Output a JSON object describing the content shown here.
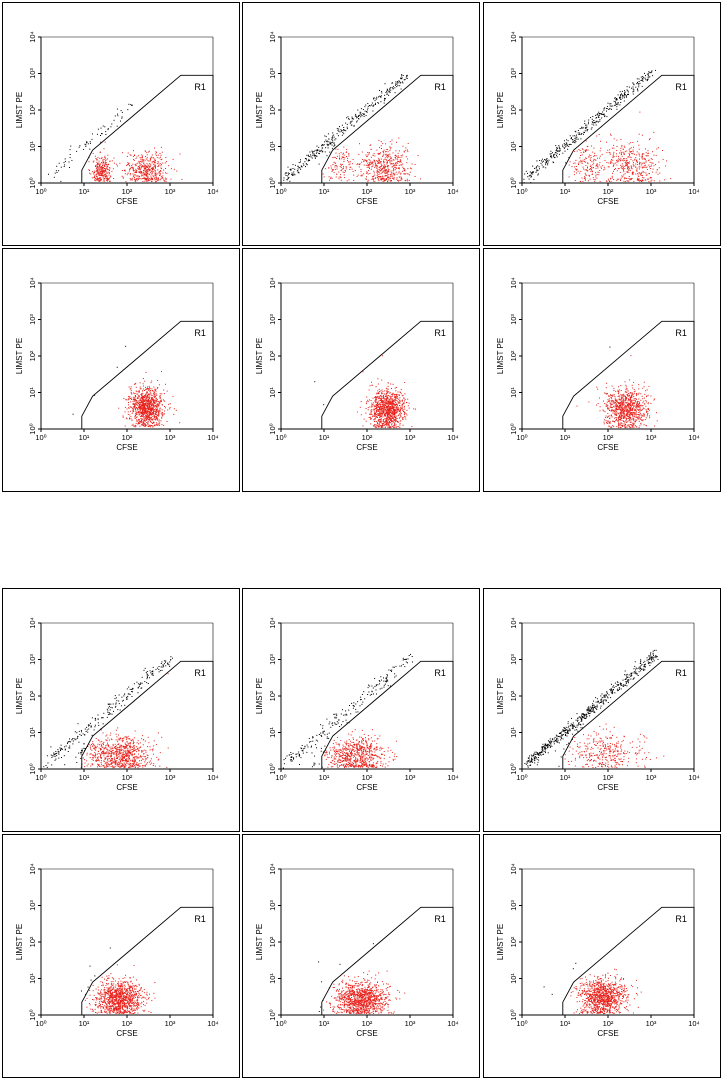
{
  "colors": {
    "gated_events": "#e8201a",
    "ungated_events": "#000000",
    "axes": "#000000"
  },
  "figures": [
    {
      "panels": [
        {
          "seed": 11,
          "chart_data": {
            "type": "scatter",
            "xlabel": "CFSE",
            "ylabel": "LIMST PE",
            "xscale": "log",
            "yscale": "log",
            "xlim": [
              1,
              10000
            ],
            "ylim": [
              1,
              10000
            ],
            "xticks": [
              "10⁰",
              "10¹",
              "10²",
              "10³",
              "10⁴"
            ],
            "yticks": [
              "10⁰",
              "10¹",
              "10²",
              "10³",
              "10⁴"
            ],
            "gate": "R1",
            "diagonal": {
              "n": 70,
              "spread": 0.12,
              "x_range": [
                0.1,
                2.1
              ]
            },
            "clusters": [
              {
                "n": 260,
                "cx": 1.4,
                "cy": 0.35,
                "sx": 0.13,
                "sy": 0.2
              },
              {
                "n": 420,
                "cx": 2.45,
                "cy": 0.35,
                "sx": 0.25,
                "sy": 0.25
              }
            ]
          }
        },
        {
          "seed": 22,
          "chart_data": {
            "type": "scatter",
            "xlabel": "CFSE",
            "ylabel": "LIMST PE",
            "xscale": "log",
            "yscale": "log",
            "xlim": [
              1,
              10000
            ],
            "ylim": [
              1,
              10000
            ],
            "xticks": [
              "10⁰",
              "10¹",
              "10²",
              "10³",
              "10⁴"
            ],
            "yticks": [
              "10⁰",
              "10¹",
              "10²",
              "10³",
              "10⁴"
            ],
            "gate": "R1",
            "diagonal": {
              "n": 320,
              "spread": 0.08,
              "x_range": [
                0.1,
                2.9
              ]
            },
            "clusters": [
              {
                "n": 120,
                "cx": 1.4,
                "cy": 0.5,
                "sx": 0.18,
                "sy": 0.25
              },
              {
                "n": 460,
                "cx": 2.4,
                "cy": 0.45,
                "sx": 0.3,
                "sy": 0.28
              }
            ]
          }
        },
        {
          "seed": 33,
          "chart_data": {
            "type": "scatter",
            "xlabel": "CFSE",
            "ylabel": "LIMST PE",
            "xscale": "log",
            "yscale": "log",
            "xlim": [
              1,
              10000
            ],
            "ylim": [
              1,
              10000
            ],
            "xticks": [
              "10⁰",
              "10¹",
              "10²",
              "10³",
              "10⁴"
            ],
            "yticks": [
              "10⁰",
              "10¹",
              "10²",
              "10³",
              "10⁴"
            ],
            "gate": "R1",
            "diagonal": {
              "n": 360,
              "spread": 0.08,
              "x_range": [
                0.1,
                3.0
              ]
            },
            "clusters": [
              {
                "n": 160,
                "cx": 1.5,
                "cy": 0.5,
                "sx": 0.22,
                "sy": 0.28
              },
              {
                "n": 380,
                "cx": 2.55,
                "cy": 0.5,
                "sx": 0.35,
                "sy": 0.35
              }
            ]
          }
        },
        {
          "seed": 44,
          "chart_data": {
            "type": "scatter",
            "xlabel": "CFSE",
            "ylabel": "LIMST PE",
            "xscale": "log",
            "yscale": "log",
            "xlim": [
              1,
              10000
            ],
            "ylim": [
              1,
              10000
            ],
            "xticks": [
              "10⁰",
              "10¹",
              "10²",
              "10³",
              "10⁴"
            ],
            "yticks": [
              "10⁰",
              "10¹",
              "10²",
              "10³",
              "10⁴"
            ],
            "gate": "R1",
            "diagonal": {
              "n": 4,
              "spread": 0.3,
              "x_range": [
                0.5,
                2.5
              ]
            },
            "clusters": [
              {
                "n": 950,
                "cx": 2.45,
                "cy": 0.6,
                "sx": 0.2,
                "sy": 0.28
              }
            ]
          }
        },
        {
          "seed": 55,
          "chart_data": {
            "type": "scatter",
            "xlabel": "CFSE",
            "ylabel": "LIMST PE",
            "xscale": "log",
            "yscale": "log",
            "xlim": [
              1,
              10000
            ],
            "ylim": [
              1,
              10000
            ],
            "xticks": [
              "10⁰",
              "10¹",
              "10²",
              "10³",
              "10⁴"
            ],
            "yticks": [
              "10⁰",
              "10¹",
              "10²",
              "10³",
              "10⁴"
            ],
            "gate": "R1",
            "diagonal": {
              "n": 4,
              "spread": 0.3,
              "x_range": [
                0.5,
                2.5
              ]
            },
            "clusters": [
              {
                "n": 950,
                "cx": 2.45,
                "cy": 0.55,
                "sx": 0.2,
                "sy": 0.28
              }
            ]
          }
        },
        {
          "seed": 66,
          "chart_data": {
            "type": "scatter",
            "xlabel": "CFSE",
            "ylabel": "LIMST PE",
            "xscale": "log",
            "yscale": "log",
            "xlim": [
              1,
              10000
            ],
            "ylim": [
              1,
              10000
            ],
            "xticks": [
              "10⁰",
              "10¹",
              "10²",
              "10³",
              "10⁴"
            ],
            "yticks": [
              "10⁰",
              "10¹",
              "10²",
              "10³",
              "10⁴"
            ],
            "gate": "R1",
            "diagonal": {
              "n": 3,
              "spread": 0.3,
              "x_range": [
                0.5,
                2.5
              ]
            },
            "clusters": [
              {
                "n": 800,
                "cx": 2.4,
                "cy": 0.55,
                "sx": 0.25,
                "sy": 0.28
              }
            ]
          }
        }
      ]
    },
    {
      "panels": [
        {
          "seed": 77,
          "chart_data": {
            "type": "scatter",
            "xlabel": "CFSE",
            "ylabel": "LIMST PE",
            "xscale": "log",
            "yscale": "log",
            "xlim": [
              1,
              10000
            ],
            "ylim": [
              1,
              10000
            ],
            "xticks": [
              "10⁰",
              "10¹",
              "10²",
              "10³",
              "10⁴"
            ],
            "yticks": [
              "10⁰",
              "10¹",
              "10²",
              "10³",
              "10⁴"
            ],
            "gate": "R1",
            "diagonal": {
              "n": 230,
              "spread": 0.1,
              "x_range": [
                0.05,
                3.0
              ]
            },
            "clusters": [
              {
                "n": 750,
                "cx": 1.8,
                "cy": 0.4,
                "sx": 0.38,
                "sy": 0.25
              }
            ]
          }
        },
        {
          "seed": 88,
          "chart_data": {
            "type": "scatter",
            "xlabel": "CFSE",
            "ylabel": "LIMST PE",
            "xscale": "log",
            "yscale": "log",
            "xlim": [
              1,
              10000
            ],
            "ylim": [
              1,
              10000
            ],
            "xticks": [
              "10⁰",
              "10¹",
              "10²",
              "10³",
              "10⁴"
            ],
            "yticks": [
              "10⁰",
              "10¹",
              "10²",
              "10³",
              "10⁴"
            ],
            "gate": "R1",
            "diagonal": {
              "n": 200,
              "spread": 0.1,
              "x_range": [
                0.05,
                3.0
              ]
            },
            "clusters": [
              {
                "n": 650,
                "cx": 1.7,
                "cy": 0.4,
                "sx": 0.38,
                "sy": 0.25
              }
            ]
          }
        },
        {
          "seed": 99,
          "chart_data": {
            "type": "scatter",
            "xlabel": "CFSE",
            "ylabel": "LIMST PE",
            "xscale": "log",
            "yscale": "log",
            "xlim": [
              1,
              10000
            ],
            "ylim": [
              1,
              10000
            ],
            "xticks": [
              "10⁰",
              "10¹",
              "10²",
              "10³",
              "10⁴"
            ],
            "yticks": [
              "10⁰",
              "10¹",
              "10²",
              "10³",
              "10⁴"
            ],
            "gate": "R1",
            "diagonal": {
              "n": 560,
              "spread": 0.08,
              "x_range": [
                0.1,
                3.1
              ]
            },
            "clusters": [
              {
                "n": 330,
                "cx": 1.9,
                "cy": 0.5,
                "sx": 0.45,
                "sy": 0.3
              }
            ]
          }
        },
        {
          "seed": 111,
          "chart_data": {
            "type": "scatter",
            "xlabel": "CFSE",
            "ylabel": "LIMST PE",
            "xscale": "log",
            "yscale": "log",
            "xlim": [
              1,
              10000
            ],
            "ylim": [
              1,
              10000
            ],
            "xticks": [
              "10⁰",
              "10¹",
              "10²",
              "10³",
              "10⁴"
            ],
            "yticks": [
              "10⁰",
              "10¹",
              "10²",
              "10³",
              "10⁴"
            ],
            "gate": "R1",
            "diagonal": {
              "n": 4,
              "spread": 0.3,
              "x_range": [
                0.5,
                2.5
              ]
            },
            "clusters": [
              {
                "n": 1000,
                "cx": 1.8,
                "cy": 0.45,
                "sx": 0.28,
                "sy": 0.25
              }
            ]
          }
        },
        {
          "seed": 122,
          "chart_data": {
            "type": "scatter",
            "xlabel": "CFSE",
            "ylabel": "LIMST PE",
            "xscale": "log",
            "yscale": "log",
            "xlim": [
              1,
              10000
            ],
            "ylim": [
              1,
              10000
            ],
            "xticks": [
              "10⁰",
              "10¹",
              "10²",
              "10³",
              "10⁴"
            ],
            "yticks": [
              "10⁰",
              "10¹",
              "10²",
              "10³",
              "10⁴"
            ],
            "gate": "R1",
            "diagonal": {
              "n": 4,
              "spread": 0.3,
              "x_range": [
                0.5,
                2.5
              ]
            },
            "clusters": [
              {
                "n": 1000,
                "cx": 1.85,
                "cy": 0.45,
                "sx": 0.3,
                "sy": 0.25
              }
            ]
          }
        },
        {
          "seed": 133,
          "chart_data": {
            "type": "scatter",
            "xlabel": "CFSE",
            "ylabel": "LIMST PE",
            "xscale": "log",
            "yscale": "log",
            "xlim": [
              1,
              10000
            ],
            "ylim": [
              1,
              10000
            ],
            "xticks": [
              "10⁰",
              "10¹",
              "10²",
              "10³",
              "10⁴"
            ],
            "yticks": [
              "10⁰",
              "10¹",
              "10²",
              "10³",
              "10⁴"
            ],
            "gate": "R1",
            "diagonal": {
              "n": 5,
              "spread": 0.3,
              "x_range": [
                0.5,
                2.5
              ]
            },
            "clusters": [
              {
                "n": 950,
                "cx": 1.85,
                "cy": 0.5,
                "sx": 0.28,
                "sy": 0.25
              }
            ]
          }
        }
      ]
    }
  ]
}
